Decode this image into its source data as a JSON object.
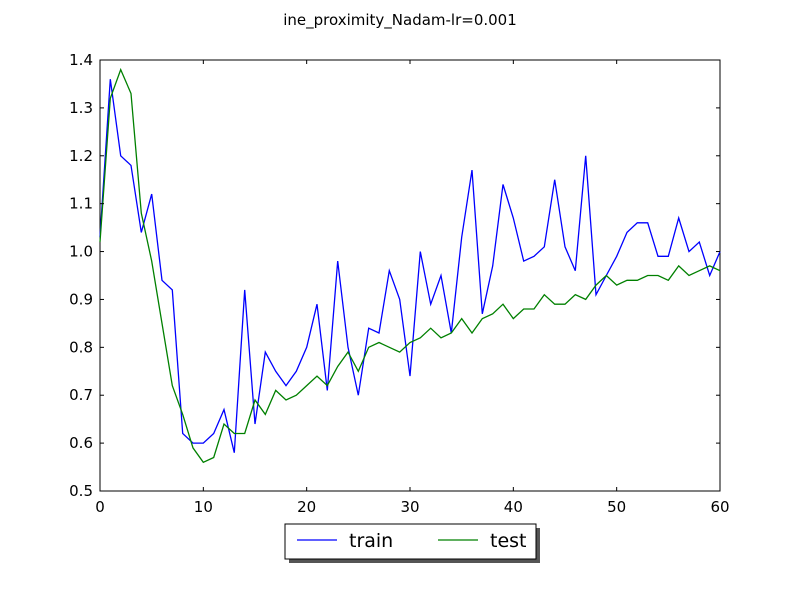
{
  "chart_data": {
    "type": "line",
    "title": "ine_proximity_Nadam-lr=0.001",
    "xlabel": "",
    "ylabel": "",
    "xlim": [
      0,
      60
    ],
    "ylim": [
      0.5,
      1.4
    ],
    "xticks": [
      0,
      10,
      20,
      30,
      40,
      50,
      60
    ],
    "yticks": [
      0.5,
      0.6,
      0.7,
      0.8,
      0.9,
      1.0,
      1.1,
      1.2,
      1.3,
      1.4
    ],
    "ytick_labels": [
      "0.5",
      "0.6",
      "0.7",
      "0.8",
      "0.9",
      "1.0",
      "1.1",
      "1.2",
      "1.3",
      "1.4"
    ],
    "grid": false,
    "legend_position": "lower-center-outside",
    "legend_columns": 2,
    "series": [
      {
        "name": "train",
        "color": "#0000ff",
        "x": [
          0,
          1,
          2,
          3,
          4,
          5,
          6,
          7,
          8,
          9,
          10,
          11,
          12,
          13,
          14,
          15,
          16,
          17,
          18,
          19,
          20,
          21,
          22,
          23,
          24,
          25,
          26,
          27,
          28,
          29,
          30,
          31,
          32,
          33,
          34,
          35,
          36,
          37,
          38,
          39,
          40,
          41,
          42,
          43,
          44,
          45,
          46,
          47,
          48,
          49,
          50,
          51,
          52,
          53,
          54,
          55,
          56,
          57,
          58,
          59,
          60
        ],
        "values": [
          1.03,
          1.36,
          1.2,
          1.18,
          1.04,
          1.12,
          0.94,
          0.92,
          0.62,
          0.6,
          0.6,
          0.62,
          0.67,
          0.58,
          0.92,
          0.64,
          0.79,
          0.75,
          0.72,
          0.75,
          0.8,
          0.89,
          0.71,
          0.98,
          0.8,
          0.7,
          0.84,
          0.83,
          0.96,
          0.9,
          0.74,
          1.0,
          0.89,
          0.95,
          0.83,
          1.03,
          1.17,
          0.87,
          0.97,
          1.14,
          1.07,
          0.98,
          0.99,
          1.01,
          1.15,
          1.01,
          0.96,
          1.2,
          0.91,
          0.95,
          0.99,
          1.04,
          1.06,
          1.06,
          0.99,
          0.99,
          1.07,
          1.0,
          1.02,
          0.95,
          1.0
        ]
      },
      {
        "name": "test",
        "color": "#008000",
        "x": [
          0,
          1,
          2,
          3,
          4,
          5,
          6,
          7,
          8,
          9,
          10,
          11,
          12,
          13,
          14,
          15,
          16,
          17,
          18,
          19,
          20,
          21,
          22,
          23,
          24,
          25,
          26,
          27,
          28,
          29,
          30,
          31,
          32,
          33,
          34,
          35,
          36,
          37,
          38,
          39,
          40,
          41,
          42,
          43,
          44,
          45,
          46,
          47,
          48,
          49,
          50,
          51,
          52,
          53,
          54,
          55,
          56,
          57,
          58,
          59,
          60
        ],
        "values": [
          1.02,
          1.32,
          1.38,
          1.33,
          1.08,
          0.98,
          0.85,
          0.72,
          0.66,
          0.59,
          0.56,
          0.57,
          0.64,
          0.62,
          0.62,
          0.69,
          0.66,
          0.71,
          0.69,
          0.7,
          0.72,
          0.74,
          0.72,
          0.76,
          0.79,
          0.75,
          0.8,
          0.81,
          0.8,
          0.79,
          0.81,
          0.82,
          0.84,
          0.82,
          0.83,
          0.86,
          0.83,
          0.86,
          0.87,
          0.89,
          0.86,
          0.88,
          0.88,
          0.91,
          0.89,
          0.89,
          0.91,
          0.9,
          0.93,
          0.95,
          0.93,
          0.94,
          0.94,
          0.95,
          0.95,
          0.94,
          0.97,
          0.95,
          0.96,
          0.97,
          0.96
        ]
      }
    ]
  }
}
